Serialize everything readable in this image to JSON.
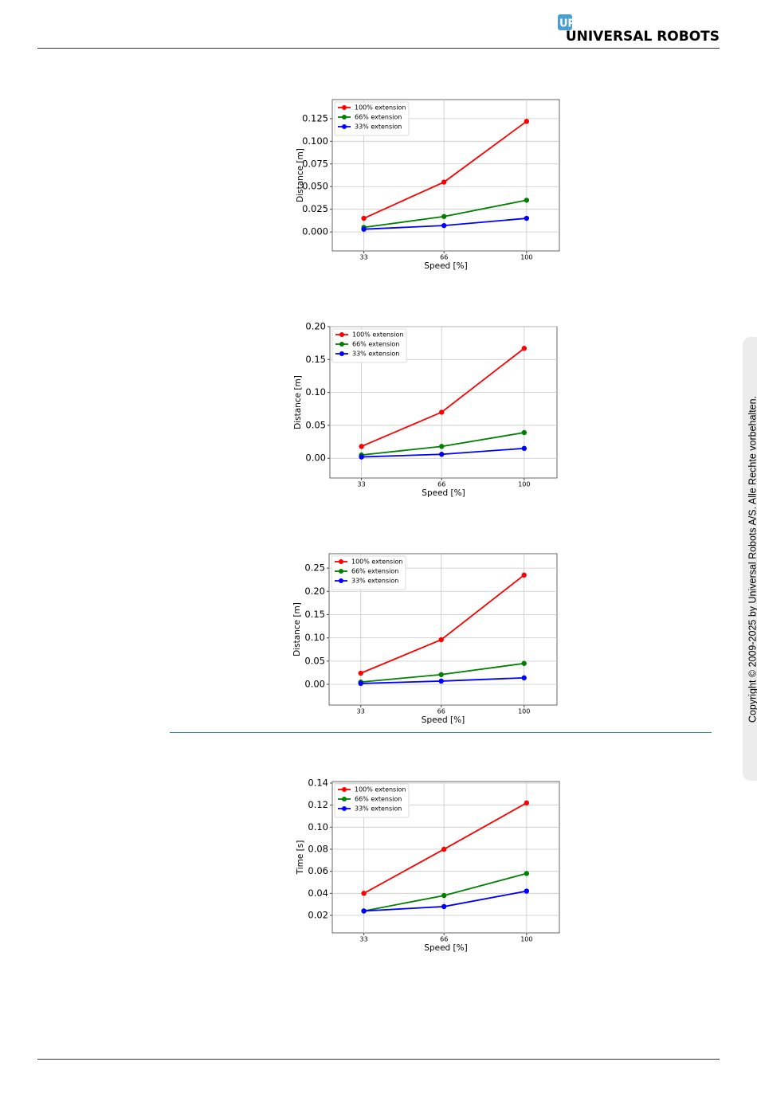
{
  "header": {
    "logo": "UNIVERSAL ROBOTS"
  },
  "sidebar": {
    "copyright": "Copyright © 2009-2025 by Universal Robots A/S. Alle Rechte vorbehalten."
  },
  "chart_data": [
    {
      "type": "line",
      "xlabel": "Speed [%]",
      "ylabel": "Distance [m]",
      "x": [
        33,
        66,
        100
      ],
      "xlim": [
        20,
        113.5
      ],
      "xticks": [
        33,
        66,
        100
      ],
      "ylim": [
        -0.021,
        0.146
      ],
      "yticks": [
        {
          "value": 0,
          "label": "0.000"
        },
        0.025,
        {
          "value": 0.05,
          "label": "0.050"
        },
        0.075,
        {
          "value": 0.1,
          "label": "0.100"
        },
        0.125
      ],
      "grid": true,
      "legend": "upper left",
      "series": [
        {
          "name": "100% extension",
          "color": "#ff0000",
          "values": [
            0.015,
            0.055,
            0.122
          ]
        },
        {
          "name": "66% extension",
          "color": "#008000",
          "values": [
            0.005,
            0.017,
            0.035
          ]
        },
        {
          "name": "33% extension",
          "color": "#0000ff",
          "values": [
            0.003,
            0.007,
            0.015
          ]
        }
      ]
    },
    {
      "type": "line",
      "xlabel": "Speed [%]",
      "ylabel": "Distance [m]",
      "x": [
        33,
        66,
        100
      ],
      "xlim": [
        20,
        113.5
      ],
      "xticks": [
        33,
        66,
        100
      ],
      "ylim": [
        -0.03,
        0.2
      ],
      "yticks": [
        {
          "value": 0,
          "label": "0.00"
        },
        0.05,
        {
          "value": 0.1,
          "label": "0.10"
        },
        0.15,
        {
          "value": 0.2,
          "label": "0.20"
        }
      ],
      "grid": true,
      "legend": "upper left",
      "series": [
        {
          "name": "100% extension",
          "color": "#ff0000",
          "values": [
            0.018,
            0.07,
            0.167
          ]
        },
        {
          "name": "66% extension",
          "color": "#008000",
          "values": [
            0.005,
            0.018,
            0.039
          ]
        },
        {
          "name": "33% extension",
          "color": "#0000ff",
          "values": [
            0.002,
            0.006,
            0.015
          ]
        }
      ]
    },
    {
      "type": "line",
      "xlabel": "Speed [%]",
      "ylabel": "Distance [m]",
      "x": [
        33,
        66,
        100
      ],
      "xlim": [
        20,
        113.5
      ],
      "xticks": [
        33,
        66,
        100
      ],
      "ylim": [
        -0.0445,
        0.281
      ],
      "yticks": [
        {
          "value": 0,
          "label": "0.00"
        },
        0.05,
        {
          "value": 0.1,
          "label": "0.10"
        },
        0.15,
        {
          "value": 0.2,
          "label": "0.20"
        },
        0.25
      ],
      "grid": true,
      "legend": "upper left",
      "series": [
        {
          "name": "100% extension",
          "color": "#ff0000",
          "values": [
            0.024,
            0.096,
            0.235
          ]
        },
        {
          "name": "66% extension",
          "color": "#008000",
          "values": [
            0.005,
            0.021,
            0.045
          ]
        },
        {
          "name": "33% extension",
          "color": "#0000ff",
          "values": [
            0.002,
            0.007,
            0.014
          ]
        }
      ]
    },
    {
      "type": "line",
      "xlabel": "Speed [%]",
      "ylabel": "Time [s]",
      "x": [
        33,
        66,
        100
      ],
      "xlim": [
        20,
        113.5
      ],
      "xticks": [
        33,
        66,
        100
      ],
      "ylim": [
        0.0041,
        0.1414
      ],
      "yticks": [
        0.02,
        0.04,
        0.06,
        0.08,
        {
          "value": 0.1,
          "label": "0.10"
        },
        0.12,
        0.14
      ],
      "grid": true,
      "legend": "upper left",
      "series": [
        {
          "name": "100% extension",
          "color": "#ff0000",
          "values": [
            0.04,
            0.08,
            0.122
          ]
        },
        {
          "name": "66% extension",
          "color": "#008000",
          "values": [
            0.024,
            0.038,
            0.058
          ]
        },
        {
          "name": "33% extension",
          "color": "#0000ff",
          "values": [
            0.024,
            0.028,
            0.042
          ]
        }
      ]
    }
  ]
}
